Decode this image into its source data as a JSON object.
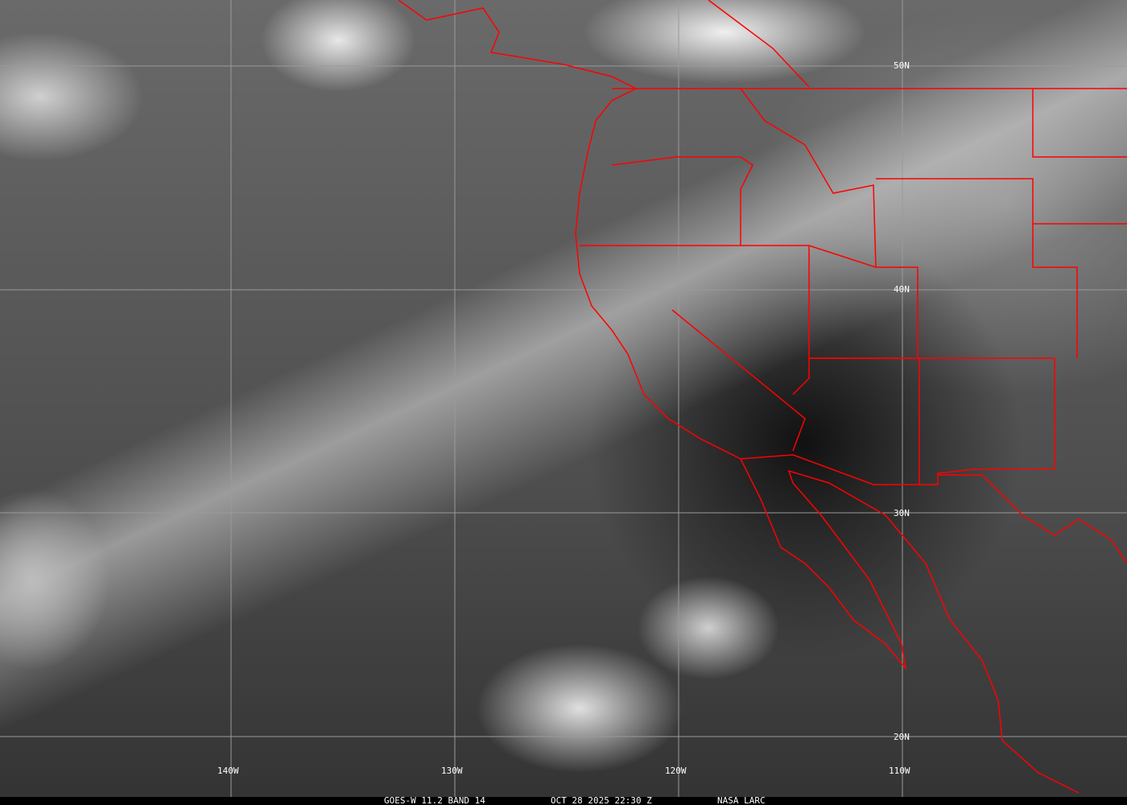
{
  "map": {
    "latitude_labels": [
      "50N",
      "40N",
      "30N",
      "20N"
    ],
    "longitude_labels": [
      "140W",
      "130W",
      "120W",
      "110W"
    ],
    "boundary_color": "#ff0000",
    "grid_color": "#9a9a9a"
  },
  "caption": {
    "product": "GOES-W 11.2 BAND 14",
    "datetime": "OCT 28 2025 22:30 Z",
    "source": "NASA LARC"
  }
}
